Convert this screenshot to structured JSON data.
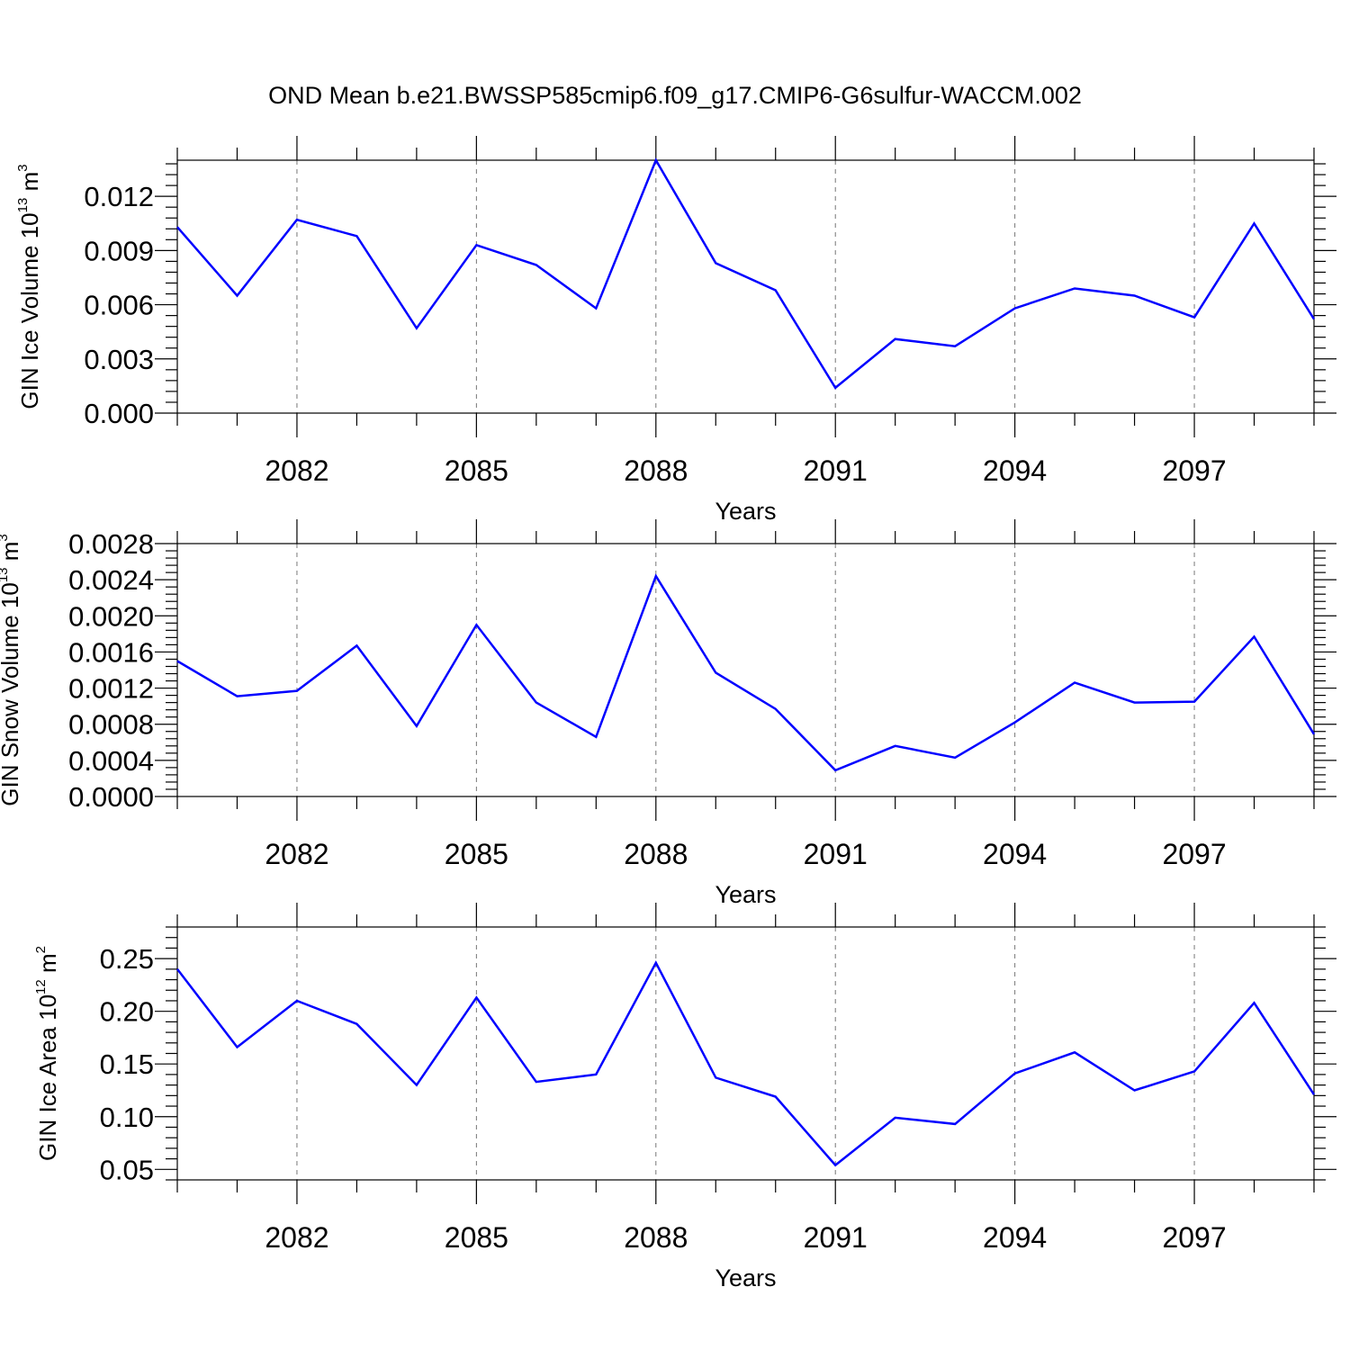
{
  "title": "OND Mean b.e21.BWSSP585cmip6.f09_g17.CMIP6-G6sulfur-WACCM.002",
  "line_color": "#0000ff",
  "chart_data": [
    {
      "type": "line",
      "xlabel": "Years",
      "ylabel": {
        "text": "GIN Ice Volume 10",
        "exp": "13",
        "unit_pre": " m",
        "unit_exp": "3"
      },
      "xlim": [
        2080,
        2099
      ],
      "ylim": [
        0,
        0.014
      ],
      "yticks": [
        "0.000",
        "0.003",
        "0.006",
        "0.009",
        "0.012"
      ],
      "ytick_values": [
        0,
        0.003,
        0.006,
        0.009,
        0.012
      ],
      "xticks": [
        "2082",
        "2085",
        "2088",
        "2091",
        "2094",
        "2097"
      ],
      "xtick_values": [
        2082,
        2085,
        2088,
        2091,
        2094,
        2097
      ],
      "grid": "dashed vertical at major x ticks",
      "x": [
        2080,
        2081,
        2082,
        2083,
        2084,
        2085,
        2086,
        2087,
        2088,
        2089,
        2090,
        2091,
        2092,
        2093,
        2094,
        2095,
        2096,
        2097,
        2098,
        2099
      ],
      "values": [
        0.0103,
        0.0065,
        0.0107,
        0.0098,
        0.0047,
        0.0093,
        0.0082,
        0.0058,
        0.014,
        0.0083,
        0.0068,
        0.0014,
        0.0041,
        0.0037,
        0.0058,
        0.0069,
        0.0065,
        0.0053,
        0.0105,
        0.0052
      ]
    },
    {
      "type": "line",
      "xlabel": "Years",
      "ylabel": {
        "text": "GIN Snow Volume 10",
        "exp": "13",
        "unit_pre": " m",
        "unit_exp": "3"
      },
      "xlim": [
        2080,
        2099
      ],
      "ylim": [
        0,
        0.0028
      ],
      "yticks": [
        "0.0000",
        "0.0004",
        "0.0008",
        "0.0012",
        "0.0016",
        "0.0020",
        "0.0024",
        "0.0028"
      ],
      "ytick_values": [
        0,
        0.0004,
        0.0008,
        0.0012,
        0.0016,
        0.002,
        0.0024,
        0.0028
      ],
      "xticks": [
        "2082",
        "2085",
        "2088",
        "2091",
        "2094",
        "2097"
      ],
      "xtick_values": [
        2082,
        2085,
        2088,
        2091,
        2094,
        2097
      ],
      "grid": "dashed vertical at major x ticks",
      "x": [
        2080,
        2081,
        2082,
        2083,
        2084,
        2085,
        2086,
        2087,
        2088,
        2089,
        2090,
        2091,
        2092,
        2093,
        2094,
        2095,
        2096,
        2097,
        2098,
        2099
      ],
      "values": [
        0.0015,
        0.00111,
        0.00117,
        0.00167,
        0.00078,
        0.0019,
        0.00104,
        0.00066,
        0.00244,
        0.00137,
        0.00097,
        0.00029,
        0.00056,
        0.00043,
        0.00082,
        0.00126,
        0.00104,
        0.00105,
        0.00177,
        0.00069
      ]
    },
    {
      "type": "line",
      "xlabel": "Years",
      "ylabel": {
        "text": "GIN Ice Area 10",
        "exp": "12",
        "unit_pre": " m",
        "unit_exp": "2"
      },
      "xlim": [
        2080,
        2099
      ],
      "ylim": [
        0.04,
        0.28
      ],
      "yticks": [
        "0.05",
        "0.10",
        "0.15",
        "0.20",
        "0.25"
      ],
      "ytick_values": [
        0.05,
        0.1,
        0.15,
        0.2,
        0.25
      ],
      "xticks": [
        "2082",
        "2085",
        "2088",
        "2091",
        "2094",
        "2097"
      ],
      "xtick_values": [
        2082,
        2085,
        2088,
        2091,
        2094,
        2097
      ],
      "grid": "dashed vertical at major x ticks",
      "x": [
        2080,
        2081,
        2082,
        2083,
        2084,
        2085,
        2086,
        2087,
        2088,
        2089,
        2090,
        2091,
        2092,
        2093,
        2094,
        2095,
        2096,
        2097,
        2098,
        2099
      ],
      "values": [
        0.24,
        0.166,
        0.21,
        0.188,
        0.13,
        0.213,
        0.133,
        0.14,
        0.246,
        0.137,
        0.119,
        0.054,
        0.099,
        0.093,
        0.141,
        0.161,
        0.125,
        0.143,
        0.208,
        0.121
      ]
    }
  ]
}
